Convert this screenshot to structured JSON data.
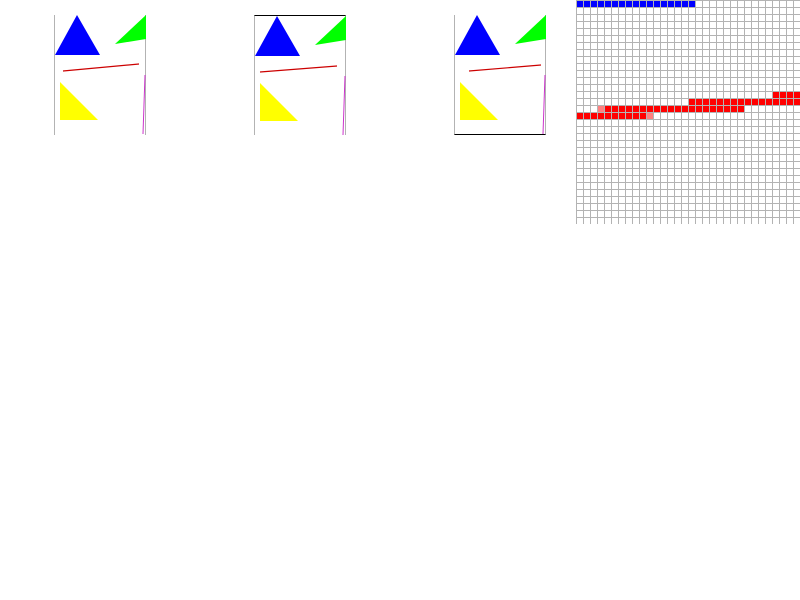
{
  "colors": {
    "background": "#ffffff",
    "triangle_large": "#0000ff",
    "triangle_small": "#00ff00",
    "triangle_lower": "#ffff00",
    "line_thin": "#cc0000",
    "line_side": "#cc33cc",
    "panel_edge": "#b3b3b3",
    "panel_frame": "#000000",
    "grid_line": "#b3b3b3",
    "pixel_blue": "#0000ff",
    "pixel_red": "#ff0000",
    "pixel_red_light": "#ff8080"
  },
  "panels": [
    {
      "id": "panel-1",
      "frame": "sides"
    },
    {
      "id": "panel-2",
      "frame": "top"
    },
    {
      "id": "panel-3",
      "frame": "bottom"
    }
  ],
  "zoom": {
    "cells": 32,
    "blue_row": {
      "row": 0,
      "cols": [
        0,
        16
      ]
    },
    "red_runs": [
      {
        "row": 13,
        "cols": [
          28,
          31
        ]
      },
      {
        "row": 14,
        "cols": [
          16,
          31
        ]
      },
      {
        "row": 15,
        "cols": [
          4,
          23
        ],
        "light_start": 3
      },
      {
        "row": 16,
        "cols": [
          0,
          9
        ],
        "light_end": 10
      }
    ]
  }
}
